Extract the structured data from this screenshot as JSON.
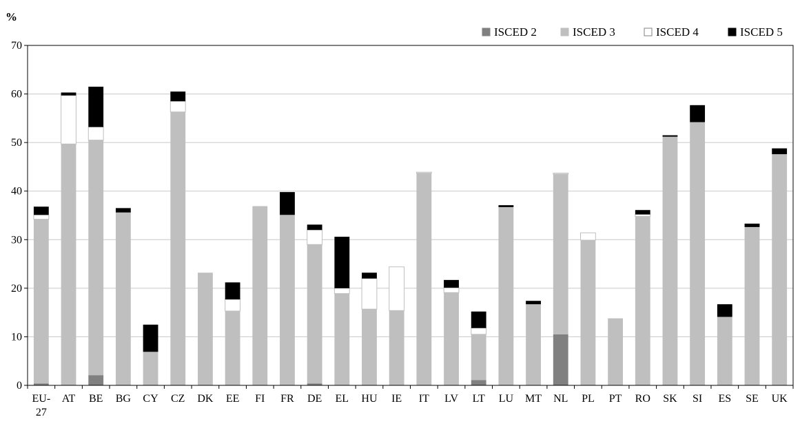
{
  "chart_data": {
    "type": "bar",
    "stacked": true,
    "ylabel": "%",
    "ylim": [
      0,
      70
    ],
    "yticks": [
      0,
      10,
      20,
      30,
      40,
      50,
      60,
      70
    ],
    "grid": true,
    "legend_position": "top-right",
    "categories": [
      "EU-27",
      "AT",
      "BE",
      "BG",
      "CY",
      "CZ",
      "DK",
      "EE",
      "FI",
      "FR",
      "DE",
      "EL",
      "HU",
      "IE",
      "IT",
      "LV",
      "LT",
      "LU",
      "MT",
      "NL",
      "PL",
      "PT",
      "RO",
      "SK",
      "SI",
      "ES",
      "SE",
      "UK"
    ],
    "category_label_lines": [
      [
        "EU-",
        "27"
      ],
      [
        "AT"
      ],
      [
        "BE"
      ],
      [
        "BG"
      ],
      [
        "CY"
      ],
      [
        "CZ"
      ],
      [
        "DK"
      ],
      [
        "EE"
      ],
      [
        "FI"
      ],
      [
        "FR"
      ],
      [
        "DE"
      ],
      [
        "EL"
      ],
      [
        "HU"
      ],
      [
        "IE"
      ],
      [
        "IT"
      ],
      [
        "LV"
      ],
      [
        "LT"
      ],
      [
        "LU"
      ],
      [
        "MT"
      ],
      [
        "NL"
      ],
      [
        "PL"
      ],
      [
        "PT"
      ],
      [
        "RO"
      ],
      [
        "SK"
      ],
      [
        "SI"
      ],
      [
        "ES"
      ],
      [
        "SE"
      ],
      [
        "UK"
      ]
    ],
    "series": [
      {
        "name": "ISCED 2",
        "color": "#808080",
        "values": [
          0.4,
          0,
          2.1,
          0,
          0,
          0,
          0,
          0,
          0,
          0,
          0.4,
          0,
          0,
          0,
          0,
          0,
          1.1,
          0,
          0,
          10.5,
          0,
          0,
          0,
          0,
          0,
          0,
          0,
          0
        ]
      },
      {
        "name": "ISCED 3",
        "color": "#bfbfbf",
        "values": [
          33.8,
          49.7,
          48.4,
          35.6,
          6.9,
          56.3,
          23.2,
          15.3,
          36.9,
          35.1,
          28.6,
          18.9,
          15.7,
          15.4,
          43.7,
          19.1,
          9.4,
          36.7,
          16.7,
          33.0,
          29.9,
          13.8,
          34.8,
          51.2,
          54.2,
          14.1,
          32.6,
          47.6
        ]
      },
      {
        "name": "ISCED 4",
        "color": "#ffffff",
        "values": [
          0.9,
          10.0,
          2.7,
          0,
          0,
          2.2,
          0,
          2.4,
          0,
          0,
          3.0,
          1.1,
          6.3,
          9.0,
          0.2,
          1.0,
          1.3,
          0,
          0,
          0.2,
          1.5,
          0,
          0.4,
          0,
          0,
          0,
          0,
          0
        ]
      },
      {
        "name": "ISCED 5",
        "color": "#000000",
        "values": [
          1.7,
          0.6,
          8.3,
          0.9,
          5.6,
          2.0,
          0,
          3.5,
          0,
          4.7,
          1.1,
          10.6,
          1.2,
          0,
          0,
          1.6,
          3.4,
          0.4,
          0.7,
          0,
          0,
          0,
          0.9,
          0.3,
          3.5,
          2.6,
          0.7,
          1.2
        ]
      }
    ]
  }
}
